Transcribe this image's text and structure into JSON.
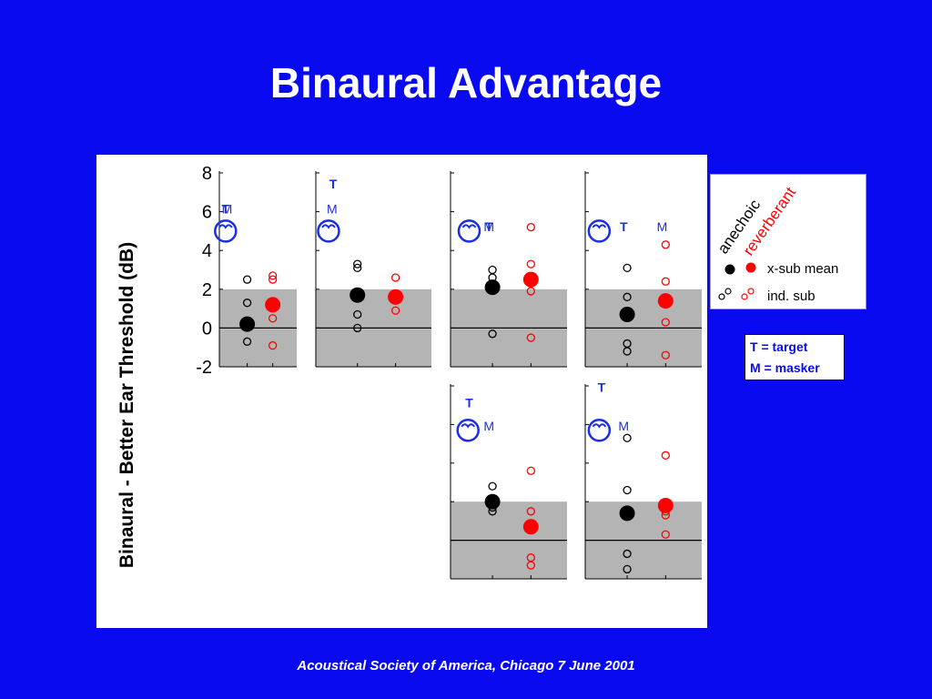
{
  "slide": {
    "title": "Binaural Advantage",
    "footer": "Acoustical Society of America, Chicago  7 June 2001"
  },
  "key": {
    "target": "T = target",
    "masker": "M = masker"
  },
  "legend": {
    "anechoic_label": "anechoic",
    "reverberant_label": "reverberant",
    "mean_label": "x-sub mean",
    "individual_label": "ind. sub"
  },
  "colors": {
    "background": "#0a0af0",
    "anechoic": "#000000",
    "reverberant": "#ff0000",
    "band": "#b4b4b4",
    "schematic": "#1a2ee6"
  },
  "chart_data": {
    "type": "scatter",
    "ylabel": "Binaural - Better Ear Threshold (dB)",
    "ylim": [
      -2,
      8
    ],
    "yticks": [
      -2,
      0,
      2,
      4,
      6,
      8
    ],
    "shaded_band": [
      -2,
      2
    ],
    "series_names": [
      "anechoic",
      "reverberant"
    ],
    "panels": [
      {
        "id": "panel-1",
        "labels": [
          "T",
          "M"
        ],
        "anechoic": {
          "mean": 0.2,
          "individual": [
            2.5,
            1.3,
            -0.7
          ]
        },
        "reverberant": {
          "mean": 1.2,
          "individual": [
            2.7,
            2.5,
            0.5,
            -0.9
          ]
        }
      },
      {
        "id": "panel-2",
        "labels": [
          "T",
          "M"
        ],
        "anechoic": {
          "mean": 1.7,
          "individual": [
            3.3,
            3.1,
            0.7,
            0.0
          ]
        },
        "reverberant": {
          "mean": 1.6,
          "individual": [
            2.6,
            0.9
          ]
        }
      },
      {
        "id": "panel-3",
        "labels": [
          "T",
          "M"
        ],
        "anechoic": {
          "mean": 2.1,
          "individual": [
            3.0,
            2.6,
            -0.3
          ]
        },
        "reverberant": {
          "mean": 2.5,
          "individual": [
            5.2,
            3.3,
            1.9,
            -0.5
          ]
        }
      },
      {
        "id": "panel-4",
        "labels": [
          "M",
          "T"
        ],
        "anechoic": {
          "mean": 0.7,
          "individual": [
            3.1,
            1.6,
            -0.8,
            -1.2
          ]
        },
        "reverberant": {
          "mean": 1.4,
          "individual": [
            4.3,
            2.4,
            0.3,
            -1.4
          ]
        }
      },
      {
        "id": "panel-5",
        "labels": [
          "T",
          "M"
        ],
        "anechoic": {
          "mean": 2.0,
          "individual": [
            2.8,
            1.7,
            1.5
          ]
        },
        "reverberant": {
          "mean": 0.7,
          "individual": [
            3.6,
            1.5,
            -0.9,
            -1.3
          ]
        }
      },
      {
        "id": "panel-6",
        "labels": [
          "T",
          "M"
        ],
        "anechoic": {
          "mean": 1.4,
          "individual": [
            5.3,
            2.6,
            -0.7,
            -1.5
          ]
        },
        "reverberant": {
          "mean": 1.8,
          "individual": [
            4.4,
            1.5,
            1.3,
            0.3
          ]
        }
      }
    ]
  }
}
